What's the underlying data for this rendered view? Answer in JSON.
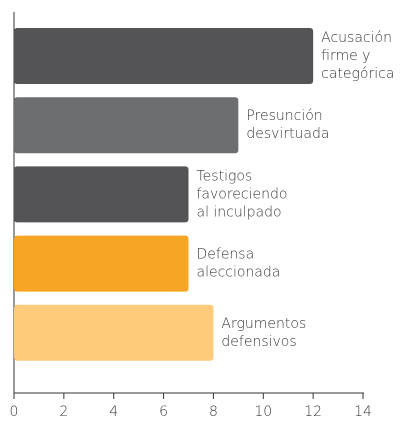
{
  "chart_data": {
    "type": "bar",
    "orientation": "horizontal",
    "categories": [
      "Acusación\nfirme y\ncategórica",
      "Presunción\ndesvirtuada",
      "Testigos\nfavoreciendo\nal inculpado",
      "Defensa\naleccionada",
      "Argumentos\ndefensivos"
    ],
    "values": [
      12,
      9,
      7,
      7,
      8
    ],
    "colors": [
      "#545456",
      "#6d6e71",
      "#545456",
      "#f6a623",
      "#fdcb7a"
    ],
    "xlim": [
      0,
      14
    ],
    "xticks": [
      0,
      2,
      4,
      6,
      8,
      10,
      12,
      14
    ]
  }
}
